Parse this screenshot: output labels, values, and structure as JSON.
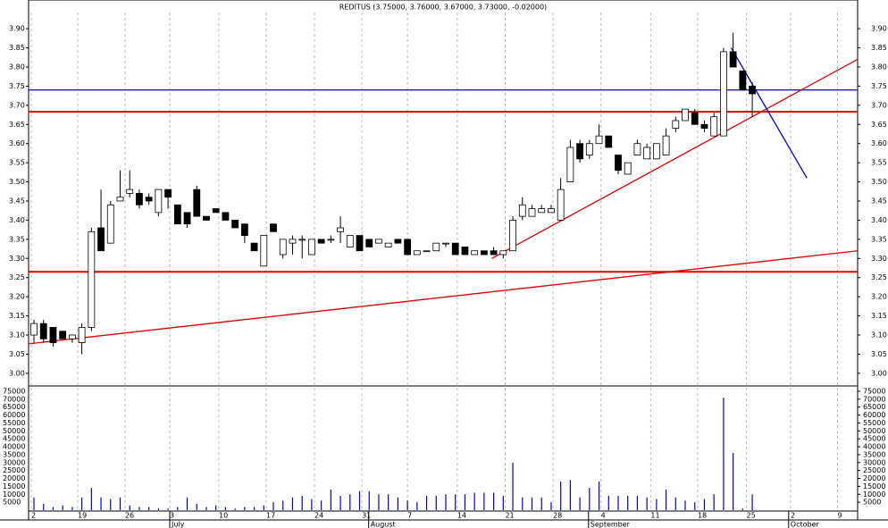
{
  "chart_data": {
    "type": "candlestick",
    "title": "REDITUS (3.75000, 3.76000, 3.67000, 3.73000, -0.02000)",
    "open": [
      3.1,
      3.13,
      3.12,
      3.11,
      3.09,
      3.08,
      3.12,
      3.38,
      3.34,
      3.45,
      3.47,
      3.47,
      3.46,
      3.42,
      3.48,
      3.44,
      3.42,
      3.48,
      3.41,
      3.43,
      3.42,
      3.4,
      3.39,
      3.34,
      3.28,
      3.39,
      3.31,
      3.34,
      3.35,
      3.31,
      3.35,
      3.35,
      3.37,
      3.33,
      3.36,
      3.35,
      3.34,
      3.33,
      3.35,
      3.35,
      3.31,
      3.32,
      3.32,
      3.34,
      3.34,
      3.33,
      3.31,
      3.32,
      3.32,
      3.31,
      3.32,
      3.41,
      3.41,
      3.42,
      3.42,
      3.4,
      3.5,
      3.6,
      3.57,
      3.6,
      3.62,
      3.57,
      3.52,
      3.57,
      3.56,
      3.56,
      3.57,
      3.64,
      3.66,
      3.68,
      3.65,
      3.62,
      3.62,
      3.84,
      3.79,
      3.75
    ],
    "high": [
      3.14,
      3.14,
      3.12,
      3.11,
      3.1,
      3.13,
      3.38,
      3.48,
      3.45,
      3.53,
      3.53,
      3.48,
      3.47,
      3.48,
      3.48,
      3.44,
      3.42,
      3.49,
      3.41,
      3.43,
      3.42,
      3.4,
      3.39,
      3.34,
      3.36,
      3.39,
      3.35,
      3.36,
      3.36,
      3.35,
      3.35,
      3.36,
      3.41,
      3.36,
      3.36,
      3.35,
      3.35,
      3.34,
      3.35,
      3.35,
      3.32,
      3.32,
      3.34,
      3.34,
      3.34,
      3.33,
      3.32,
      3.32,
      3.33,
      3.32,
      3.41,
      3.46,
      3.44,
      3.44,
      3.44,
      3.51,
      3.61,
      3.61,
      3.61,
      3.65,
      3.62,
      3.57,
      3.55,
      3.61,
      3.6,
      3.6,
      3.64,
      3.67,
      3.69,
      3.69,
      3.66,
      3.68,
      3.85,
      3.89,
      3.79,
      3.76
    ],
    "low": [
      3.08,
      3.08,
      3.07,
      3.09,
      3.08,
      3.05,
      3.11,
      3.32,
      3.34,
      3.45,
      3.46,
      3.43,
      3.44,
      3.41,
      3.43,
      3.39,
      3.38,
      3.41,
      3.4,
      3.42,
      3.4,
      3.38,
      3.34,
      3.32,
      3.28,
      3.37,
      3.3,
      3.31,
      3.3,
      3.31,
      3.34,
      3.34,
      3.34,
      3.33,
      3.32,
      3.33,
      3.34,
      3.33,
      3.34,
      3.31,
      3.31,
      3.32,
      3.32,
      3.33,
      3.31,
      3.31,
      3.31,
      3.31,
      3.31,
      3.3,
      3.32,
      3.4,
      3.41,
      3.42,
      3.42,
      3.4,
      3.5,
      3.55,
      3.56,
      3.6,
      3.59,
      3.52,
      3.52,
      3.57,
      3.56,
      3.56,
      3.57,
      3.63,
      3.66,
      3.65,
      3.63,
      3.62,
      3.62,
      3.8,
      3.74,
      3.67
    ],
    "close": [
      3.13,
      3.09,
      3.08,
      3.09,
      3.1,
      3.12,
      3.37,
      3.32,
      3.44,
      3.46,
      3.48,
      3.44,
      3.45,
      3.48,
      3.46,
      3.39,
      3.39,
      3.41,
      3.4,
      3.42,
      3.4,
      3.38,
      3.36,
      3.32,
      3.36,
      3.37,
      3.35,
      3.35,
      3.35,
      3.35,
      3.34,
      3.35,
      3.38,
      3.36,
      3.32,
      3.33,
      3.35,
      3.34,
      3.34,
      3.31,
      3.32,
      3.32,
      3.34,
      3.34,
      3.31,
      3.31,
      3.32,
      3.31,
      3.31,
      3.32,
      3.4,
      3.44,
      3.43,
      3.43,
      3.43,
      3.48,
      3.59,
      3.56,
      3.6,
      3.62,
      3.59,
      3.53,
      3.55,
      3.6,
      3.59,
      3.6,
      3.62,
      3.66,
      3.69,
      3.65,
      3.64,
      3.67,
      3.84,
      3.8,
      3.74,
      3.73
    ],
    "volume": [
      8000,
      4000,
      2000,
      3000,
      2000,
      8000,
      14000,
      8000,
      7000,
      8000,
      3000,
      2000,
      2000,
      1000,
      1000,
      2000,
      8000,
      4000,
      2000,
      3000,
      2000,
      1000,
      2000,
      2000,
      3000,
      5000,
      6000,
      8000,
      9000,
      7000,
      6000,
      13000,
      9000,
      10000,
      12000,
      12000,
      10000,
      10000,
      8000,
      6000,
      5000,
      9000,
      9000,
      10000,
      10000,
      10000,
      11000,
      11000,
      11000,
      9000,
      30000,
      8000,
      8000,
      8000,
      5000,
      18000,
      19000,
      8000,
      14000,
      18000,
      9000,
      9000,
      9000,
      9000,
      8000,
      7000,
      13000,
      8000,
      6000,
      5000,
      7000,
      10000,
      71000,
      36000,
      1000,
      10000
    ],
    "volume_color": "#0000cc",
    "xlim": [
      -0.56,
      86
    ],
    "xticks": [
      {
        "value": -0.28,
        "label": "2"
      },
      {
        "value": 4.57,
        "label": "19"
      },
      {
        "value": 9.51,
        "label": "26"
      },
      {
        "value": 14.18,
        "label": "3"
      },
      {
        "value": 19.31,
        "label": "10"
      },
      {
        "value": 24.25,
        "label": "17"
      },
      {
        "value": 29.29,
        "label": "24"
      },
      {
        "value": 34.24,
        "label": "31"
      },
      {
        "value": 39.0,
        "label": "7"
      },
      {
        "value": 44.2,
        "label": "14"
      },
      {
        "value": 49.2,
        "label": "21"
      },
      {
        "value": 54.2,
        "label": "28"
      },
      {
        "value": 59.2,
        "label": "4"
      },
      {
        "value": 64.4,
        "label": "11"
      },
      {
        "value": 69.3,
        "label": "18"
      },
      {
        "value": 74.4,
        "label": "25"
      },
      {
        "value": 79.0,
        "label": "2"
      },
      {
        "value": 83.9,
        "label": "9"
      }
    ],
    "months": [
      {
        "value": 14.18,
        "label": "July"
      },
      {
        "value": 34.95,
        "label": "August"
      },
      {
        "value": 57.9,
        "label": "September"
      },
      {
        "value": 78.8,
        "label": "October"
      }
    ],
    "ylim": [
      2.967,
      3.975
    ],
    "yticks": [
      {
        "value": 3.0,
        "label": "3.00"
      },
      {
        "value": 3.05,
        "label": "3.05"
      },
      {
        "value": 3.1,
        "label": "3.10"
      },
      {
        "value": 3.15,
        "label": "3.15"
      },
      {
        "value": 3.2,
        "label": "3.20"
      },
      {
        "value": 3.25,
        "label": "3.25"
      },
      {
        "value": 3.3,
        "label": "3.30"
      },
      {
        "value": 3.35,
        "label": "3.35"
      },
      {
        "value": 3.4,
        "label": "3.40"
      },
      {
        "value": 3.45,
        "label": "3.45"
      },
      {
        "value": 3.5,
        "label": "3.50"
      },
      {
        "value": 3.55,
        "label": "3.55"
      },
      {
        "value": 3.6,
        "label": "3.60"
      },
      {
        "value": 3.65,
        "label": "3.65"
      },
      {
        "value": 3.7,
        "label": "3.70"
      },
      {
        "value": 3.75,
        "label": "3.75"
      },
      {
        "value": 3.8,
        "label": "3.80"
      },
      {
        "value": 3.85,
        "label": "3.85"
      },
      {
        "value": 3.9,
        "label": "3.90"
      }
    ],
    "volume_ylim": [
      0,
      77800
    ],
    "volume_yticks": [
      5000,
      10000,
      15000,
      20000,
      25000,
      30000,
      35000,
      40000,
      45000,
      50000,
      55000,
      60000,
      65000,
      70000,
      75000
    ],
    "lines": [
      {
        "color": "#0000cc",
        "x": [
          -0.56,
          86
        ],
        "y": [
          3.74,
          3.74
        ]
      },
      {
        "color": "#dd0000",
        "x": [
          -0.56,
          86
        ],
        "y": [
          3.683,
          3.683
        ]
      },
      {
        "color": "#dd0000",
        "x": [
          -0.56,
          86
        ],
        "y": [
          3.265,
          3.265
        ]
      },
      {
        "color": "#dd0000",
        "x": [
          -0.56,
          86
        ],
        "y": [
          3.077,
          3.32
        ]
      },
      {
        "color": "#dd0000",
        "x": [
          47.8,
          86
        ],
        "y": [
          3.3,
          3.82
        ]
      },
      {
        "color": "#0000cc",
        "x": [
          72.8,
          80.7
        ],
        "y": [
          3.85,
          3.51
        ]
      }
    ]
  }
}
